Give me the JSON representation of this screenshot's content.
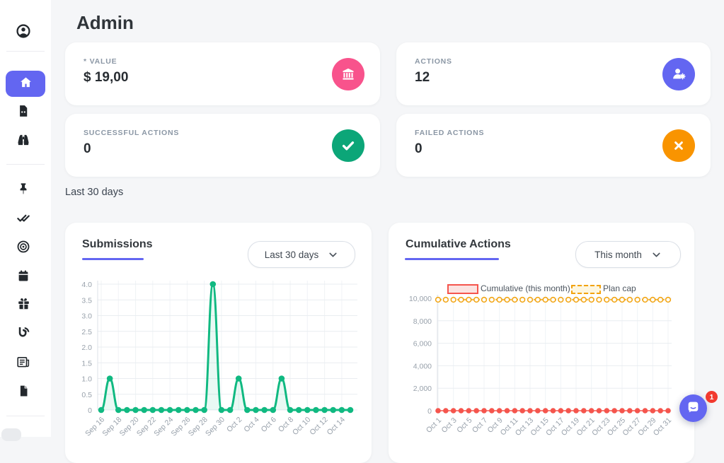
{
  "page_title": "Admin",
  "colors": {
    "accent": "#6366f1",
    "pink": "#f8538c",
    "success_green": "#0ca678",
    "chart_green": "#10b981",
    "orange": "#f99400",
    "red": "#f5554d",
    "plan_cap_orange": "#f2a20d",
    "background": "#f5f6f8"
  },
  "sidebar": {
    "items": [
      {
        "icon": "user-circle-icon"
      },
      {
        "icon": "home-icon",
        "active": true
      },
      {
        "icon": "file-code-icon"
      },
      {
        "icon": "binoculars-icon"
      },
      {
        "icon": "thumbtack-icon"
      },
      {
        "icon": "check-double-icon"
      },
      {
        "icon": "bullseye-icon"
      },
      {
        "icon": "calendar-icon"
      },
      {
        "icon": "gift-icon"
      },
      {
        "icon": "blog-icon"
      },
      {
        "icon": "newspaper-icon"
      },
      {
        "icon": "file-icon"
      }
    ]
  },
  "stat_cards": [
    {
      "label": "* VALUE",
      "value": "$ 19,00",
      "icon": "bank-icon",
      "icon_bg": "#f8538c"
    },
    {
      "label": "ACTIONS",
      "value": "12",
      "icon": "user-gear-icon",
      "icon_bg": "#6366f1"
    },
    {
      "label": "SUCCESSFUL ACTIONS",
      "value": "0",
      "icon": "check-icon",
      "icon_bg": "#0ca678"
    },
    {
      "label": "FAILED ACTIONS",
      "value": "0",
      "icon": "x-icon",
      "icon_bg": "#f99400"
    }
  ],
  "period_label": "Last 30 days",
  "submissions_card": {
    "range_selector": "Last 30 days"
  },
  "cumulative_card": {
    "range_selector": "This month"
  },
  "chart_data": [
    {
      "type": "line",
      "title": "Submissions",
      "color": "#10b981",
      "x": [
        "Sep 16",
        "Sep 17",
        "Sep 18",
        "Sep 19",
        "Sep 20",
        "Sep 21",
        "Sep 22",
        "Sep 23",
        "Sep 24",
        "Sep 25",
        "Sep 26",
        "Sep 27",
        "Sep 28",
        "Sep 29",
        "Sep 30",
        "Oct 1",
        "Oct 2",
        "Oct 3",
        "Oct 4",
        "Oct 5",
        "Oct 6",
        "Oct 7",
        "Oct 8",
        "Oct 9",
        "Oct 10",
        "Oct 11",
        "Oct 12",
        "Oct 13",
        "Oct 14",
        "Oct 15"
      ],
      "values": [
        0,
        1,
        0,
        0,
        0,
        0,
        0,
        0,
        0,
        0,
        0,
        0,
        0,
        4,
        0,
        0,
        1,
        0,
        0,
        0,
        0,
        1,
        0,
        0,
        0,
        0,
        0,
        0,
        0,
        0
      ],
      "ylim": [
        0,
        4
      ],
      "yticks": [
        "4.0",
        "3.5",
        "3.0",
        "2.5",
        "2.0",
        "1.5",
        "1.0",
        "0.5",
        "0"
      ],
      "grid": true,
      "x_labels_every": 2,
      "legend_position": "none"
    },
    {
      "type": "line",
      "title": "Cumulative Actions",
      "x": [
        "Oct 1",
        "Oct 2",
        "Oct 3",
        "Oct 4",
        "Oct 5",
        "Oct 6",
        "Oct 7",
        "Oct 8",
        "Oct 9",
        "Oct 10",
        "Oct 11",
        "Oct 12",
        "Oct 13",
        "Oct 14",
        "Oct 15",
        "Oct 16",
        "Oct 17",
        "Oct 18",
        "Oct 19",
        "Oct 20",
        "Oct 21",
        "Oct 22",
        "Oct 23",
        "Oct 24",
        "Oct 25",
        "Oct 26",
        "Oct 27",
        "Oct 28",
        "Oct 29",
        "Oct 30",
        "Oct 31"
      ],
      "series": [
        {
          "name": "Cumulative (this month)",
          "color": "#f5554d",
          "values": [
            0,
            0,
            0,
            0,
            0,
            0,
            0,
            0,
            0,
            0,
            0,
            0,
            0,
            0,
            0,
            0,
            0,
            0,
            0,
            0,
            0,
            0,
            0,
            0,
            0,
            0,
            0,
            0,
            0,
            0,
            0
          ]
        },
        {
          "name": "Plan cap",
          "color": "#f2a20d",
          "style": "dashed",
          "values": [
            10000,
            10000,
            10000,
            10000,
            10000,
            10000,
            10000,
            10000,
            10000,
            10000,
            10000,
            10000,
            10000,
            10000,
            10000,
            10000,
            10000,
            10000,
            10000,
            10000,
            10000,
            10000,
            10000,
            10000,
            10000,
            10000,
            10000,
            10000,
            10000,
            10000,
            10000
          ]
        }
      ],
      "ylim": [
        0,
        10000
      ],
      "yticks": [
        "10,000",
        "8,000",
        "6,000",
        "4,000",
        "2,000",
        "0"
      ],
      "grid": true,
      "x_labels_every": 2,
      "legend_position": "top"
    }
  ],
  "chat_widget": {
    "unread_count": "1",
    "icon": "chat-bubble-icon"
  }
}
